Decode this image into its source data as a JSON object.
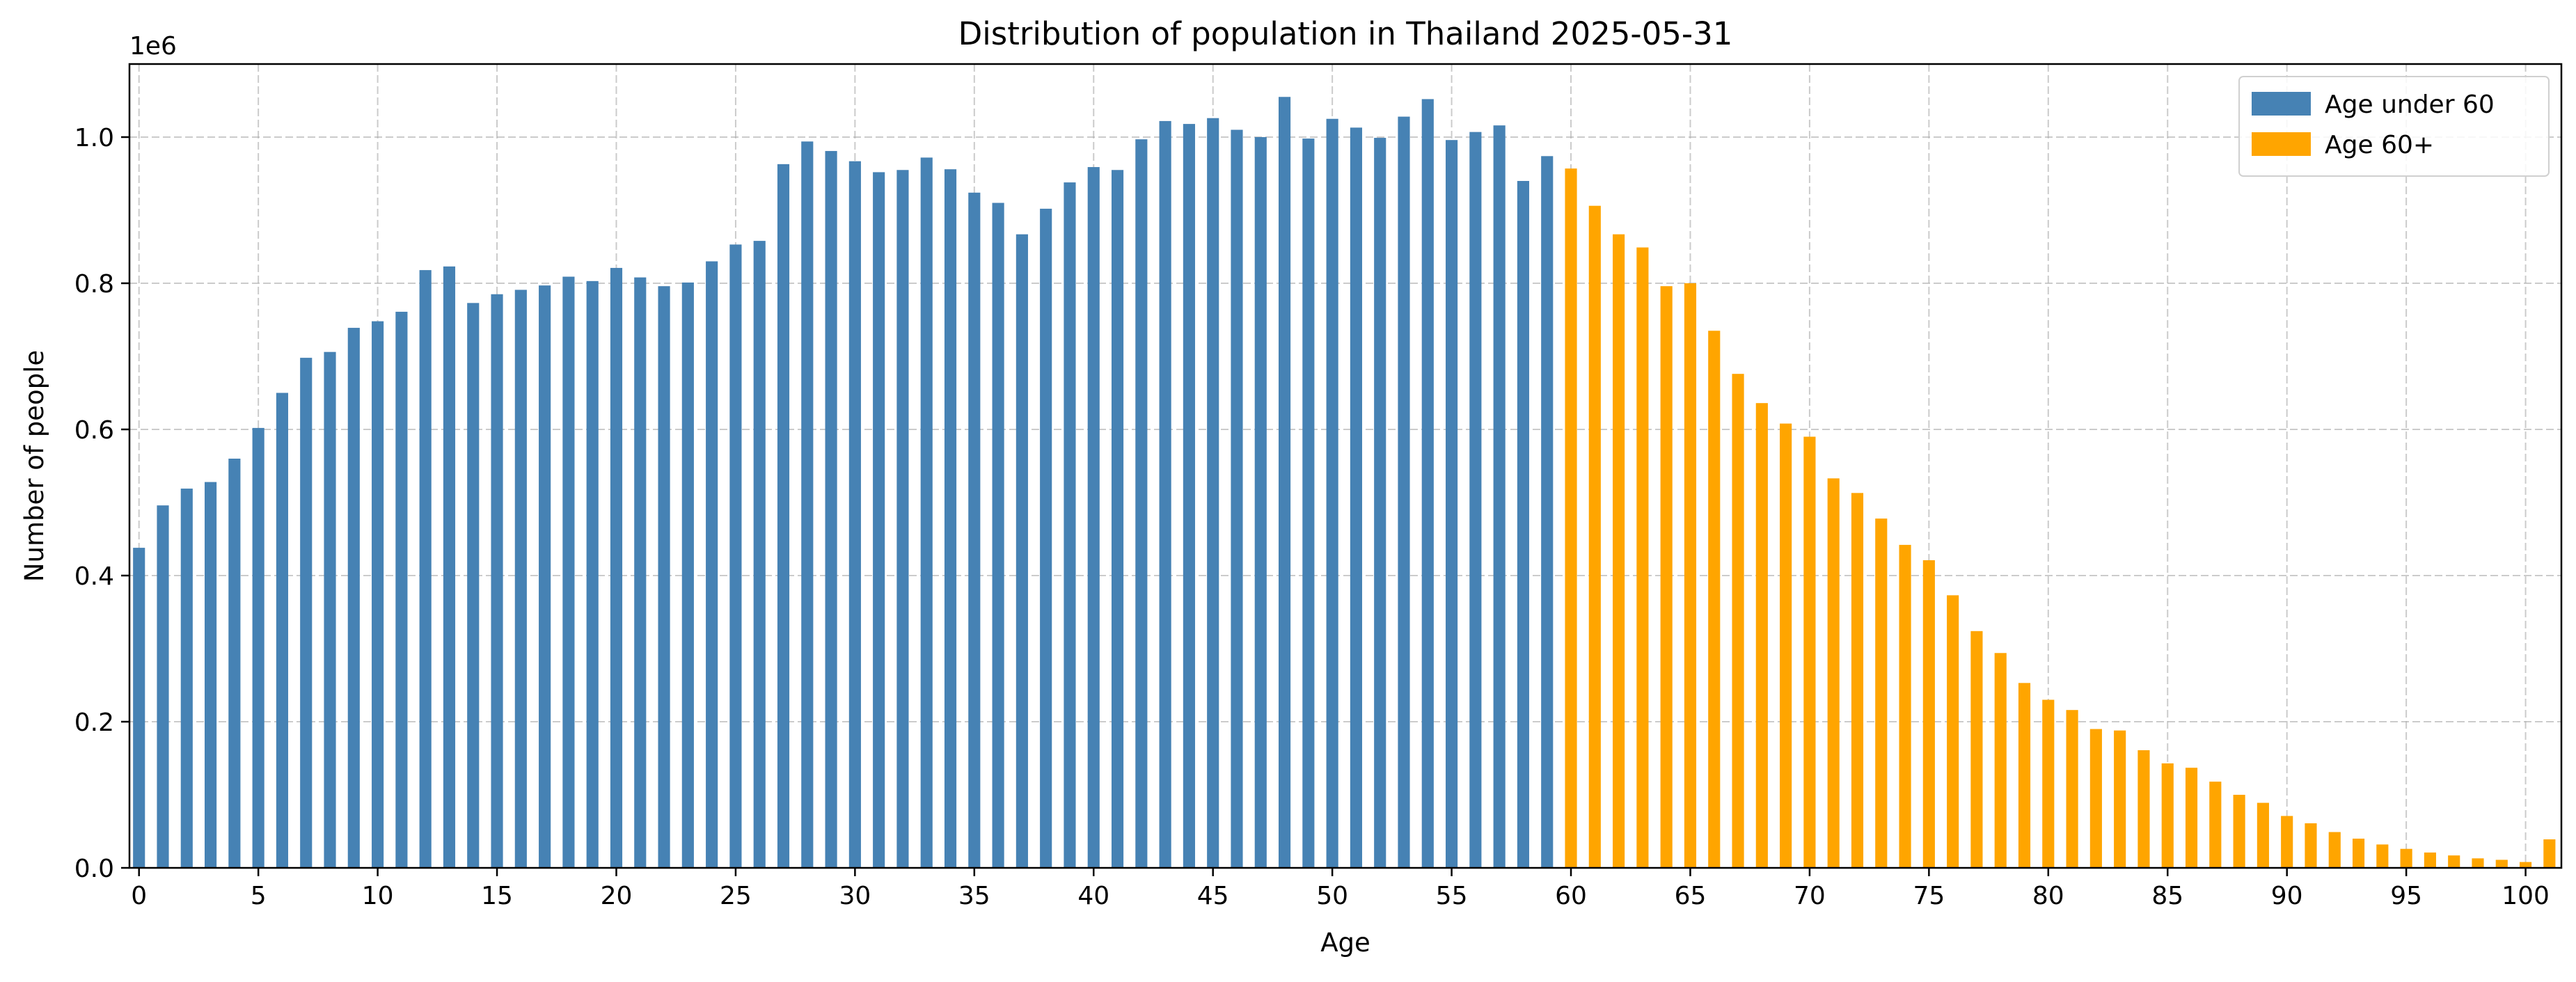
{
  "chart_data": {
    "type": "bar",
    "title": "Distribution of population in Thailand 2025-05-31",
    "xlabel": "Age",
    "ylabel": "Number of people",
    "y_offset_label": "1e6",
    "ylim": [
      0,
      1.1
    ],
    "y_ticks": [
      0.0,
      0.2,
      0.4,
      0.6,
      0.8,
      1.0
    ],
    "y_tick_labels": [
      "0.0",
      "0.2",
      "0.4",
      "0.6",
      "0.8",
      "1.0"
    ],
    "x_ticks": [
      0,
      5,
      10,
      15,
      20,
      25,
      30,
      35,
      40,
      45,
      50,
      55,
      60,
      65,
      70,
      75,
      80,
      85,
      90,
      95,
      100
    ],
    "x_tick_labels": [
      "0",
      "5",
      "10",
      "15",
      "20",
      "25",
      "30",
      "35",
      "40",
      "45",
      "50",
      "55",
      "60",
      "65",
      "70",
      "75",
      "80",
      "85",
      "90",
      "95",
      "100"
    ],
    "xlim": [
      -0.4,
      101.5
    ],
    "grid": true,
    "legend_position": "top-right",
    "categories": [
      0,
      1,
      2,
      3,
      4,
      5,
      6,
      7,
      8,
      9,
      10,
      11,
      12,
      13,
      14,
      15,
      16,
      17,
      18,
      19,
      20,
      21,
      22,
      23,
      24,
      25,
      26,
      27,
      28,
      29,
      30,
      31,
      32,
      33,
      34,
      35,
      36,
      37,
      38,
      39,
      40,
      41,
      42,
      43,
      44,
      45,
      46,
      47,
      48,
      49,
      50,
      51,
      52,
      53,
      54,
      55,
      56,
      57,
      58,
      59,
      60,
      61,
      62,
      63,
      64,
      65,
      66,
      67,
      68,
      69,
      70,
      71,
      72,
      73,
      74,
      75,
      76,
      77,
      78,
      79,
      80,
      81,
      82,
      83,
      84,
      85,
      86,
      87,
      88,
      89,
      90,
      91,
      92,
      93,
      94,
      95,
      96,
      97,
      98,
      99,
      100,
      101
    ],
    "series": [
      {
        "name": "Age under 60",
        "color": "#4682b4",
        "x": [
          0,
          1,
          2,
          3,
          4,
          5,
          6,
          7,
          8,
          9,
          10,
          11,
          12,
          13,
          14,
          15,
          16,
          17,
          18,
          19,
          20,
          21,
          22,
          23,
          24,
          25,
          26,
          27,
          28,
          29,
          30,
          31,
          32,
          33,
          34,
          35,
          36,
          37,
          38,
          39,
          40,
          41,
          42,
          43,
          44,
          45,
          46,
          47,
          48,
          49,
          50,
          51,
          52,
          53,
          54,
          55,
          56,
          57,
          58,
          59
        ],
        "values": [
          0.438,
          0.496,
          0.519,
          0.528,
          0.56,
          0.602,
          0.65,
          0.698,
          0.706,
          0.739,
          0.748,
          0.761,
          0.818,
          0.823,
          0.773,
          0.785,
          0.791,
          0.797,
          0.809,
          0.803,
          0.821,
          0.808,
          0.796,
          0.801,
          0.83,
          0.853,
          0.858,
          0.963,
          0.994,
          0.981,
          0.967,
          0.952,
          0.955,
          0.972,
          0.956,
          0.924,
          0.91,
          0.867,
          0.902,
          0.938,
          0.959,
          0.955,
          0.997,
          1.022,
          1.018,
          1.026,
          1.01,
          1.0,
          1.055,
          0.998,
          1.025,
          1.013,
          0.999,
          1.028,
          1.052,
          0.996,
          1.007,
          1.016,
          0.94,
          0.974
        ]
      },
      {
        "name": "Age 60+",
        "color": "#ffa500",
        "x": [
          60,
          61,
          62,
          63,
          64,
          65,
          66,
          67,
          68,
          69,
          70,
          71,
          72,
          73,
          74,
          75,
          76,
          77,
          78,
          79,
          80,
          81,
          82,
          83,
          84,
          85,
          86,
          87,
          88,
          89,
          90,
          91,
          92,
          93,
          94,
          95,
          96,
          97,
          98,
          99,
          100,
          101
        ],
        "values": [
          0.957,
          0.906,
          0.867,
          0.849,
          0.796,
          0.8,
          0.735,
          0.676,
          0.636,
          0.608,
          0.59,
          0.533,
          0.513,
          0.478,
          0.442,
          0.421,
          0.373,
          0.324,
          0.294,
          0.253,
          0.23,
          0.216,
          0.19,
          0.188,
          0.161,
          0.143,
          0.137,
          0.118,
          0.1,
          0.089,
          0.071,
          0.061,
          0.049,
          0.04,
          0.032,
          0.026,
          0.021,
          0.017,
          0.013,
          0.011,
          0.008,
          0.039
        ]
      }
    ]
  }
}
